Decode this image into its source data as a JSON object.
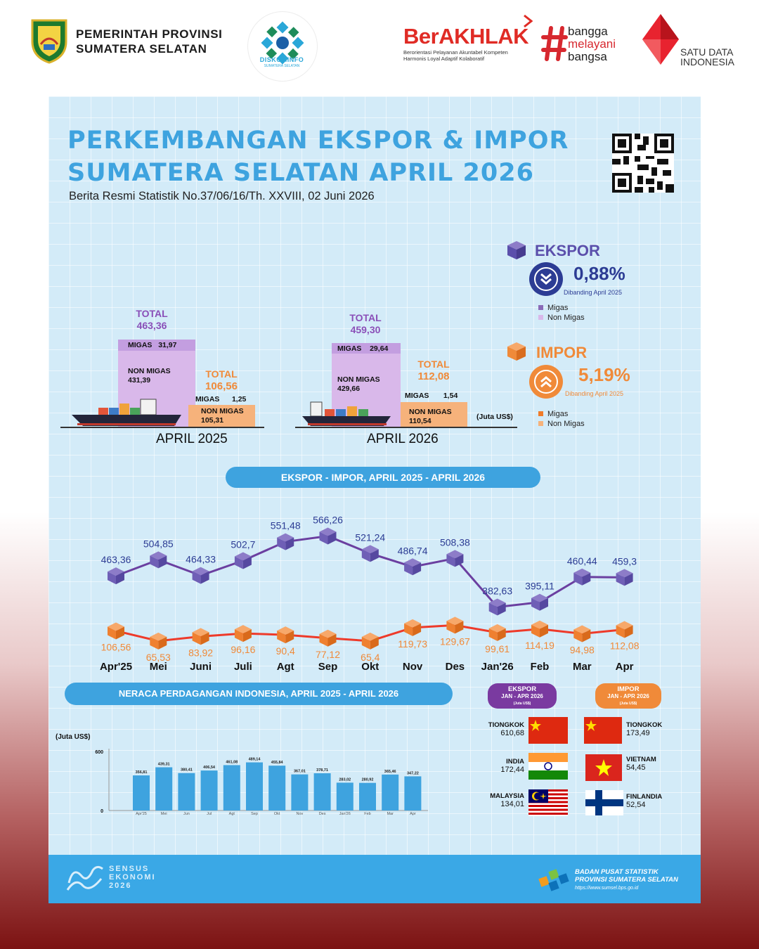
{
  "header": {
    "gov_line1": "PEMERINTAH PROVINSI",
    "gov_line2": "SUMATERA SELATAN",
    "diskominfo": "DISKOMINFO",
    "diskominfo_sub": "SUMATERA SELATAN",
    "berakhlak": "BerAKHLAK",
    "berakhlak_sub1": "Berorientasi Pelayanan Akuntabel Kompeten",
    "berakhlak_sub2": "Harmonis Loyal Adaptif Kolaboratif",
    "bangga": [
      "bangga",
      "melayani",
      "bangsa"
    ],
    "sdi_line1": "SATU DATA",
    "sdi_line2": "INDONESIA"
  },
  "title_line1": "PERKEMBANGAN EKSPOR & IMPOR",
  "title_line2": "SUMATERA SELATAN APRIL 2026",
  "subtitle": "Berita Resmi Statistik No.37/06/16/Th. XXVIII, 02 Juni 2026",
  "summary": {
    "ekspor_label": "EKSPOR",
    "ekspor_pct": "0,88%",
    "ekspor_cmp": "Dibanding April 2025",
    "impor_label": "IMPOR",
    "impor_pct": "5,19%",
    "impor_cmp": "Dibanding April 2025",
    "legend_migas": "Migas",
    "legend_nonmigas": "Non Migas",
    "colors": {
      "ekspor_migas": "#8a6bb8",
      "ekspor_nonmigas": "#d9b8ea",
      "impor_migas": "#f07c2a",
      "impor_nonmigas": "#f6b27b"
    }
  },
  "comparison": {
    "unit": "(Juta US$)",
    "total_word": "TOTAL",
    "migas_word": "MIGAS",
    "nonmigas_word": "NON MIGAS",
    "apr2025": {
      "label": "APRIL 2025",
      "ekspor_total": "463,36",
      "ekspor_migas": "31,97",
      "ekspor_nonmigas": "431,39",
      "impor_total": "106,56",
      "impor_migas": "1,25",
      "impor_nonmigas": "105,31"
    },
    "apr2026": {
      "label": "APRIL 2026",
      "ekspor_total": "459,30",
      "ekspor_migas": "29,64",
      "ekspor_nonmigas": "429,66",
      "impor_total": "112,08",
      "impor_migas": "1,54",
      "impor_nonmigas": "110,54"
    }
  },
  "trend_title": "EKSPOR - IMPOR, APRIL 2025 -  APRIL 2026",
  "neraca_title": "NERACA PERDAGANGAN INDONESIA, APRIL 2025 - APRIL 2026",
  "chart_data": [
    {
      "type": "line",
      "categories": [
        "Apr'25",
        "Mei",
        "Juni",
        "Juli",
        "Agt",
        "Sep",
        "Okt",
        "Nov",
        "Des",
        "Jan'26",
        "Feb",
        "Mar",
        "Apr"
      ],
      "series": [
        {
          "values": [
            463.36,
            504.85,
            464.33,
            502.7,
            551.48,
            566.26,
            521.24,
            486.74,
            508.38,
            382.63,
            395.11,
            460.44,
            459.3
          ],
          "labels": [
            "463,36",
            "504,85",
            "464,33",
            "502,7",
            "551,48",
            "566,26",
            "521,24",
            "486,74",
            "508,38",
            "382,63",
            "395,11",
            "460,44",
            "459,3"
          ],
          "color": "#6b3fa0"
        },
        {
          "values": [
            106.56,
            65.53,
            83.92,
            96.16,
            90.4,
            77.12,
            65.4,
            119.73,
            129.67,
            99.61,
            114.19,
            94.98,
            112.08
          ],
          "labels": [
            "106,56",
            "65,53",
            "83,92",
            "96,16",
            "90,4",
            "77,12",
            "65,4",
            "119,73",
            "129,67",
            "99,61",
            "114,19",
            "94,98",
            "112,08"
          ],
          "color": "#ee3a2a"
        }
      ]
    },
    {
      "type": "bar",
      "ylabel": "(Juta US$)",
      "ylim": [
        0,
        600
      ],
      "yticks": [
        "600",
        "0"
      ],
      "categories": [
        "Apr'25",
        "Mei",
        "Jun",
        "Jul",
        "Agt",
        "Sep",
        "Okt",
        "Nov",
        "Des",
        "Jan'26",
        "Feb",
        "Mar",
        "Apr"
      ],
      "values": [
        356.81,
        439.31,
        380.41,
        406.54,
        461.08,
        489.14,
        455.84,
        367.01,
        378.71,
        283.02,
        280.92,
        365.46,
        347.22
      ],
      "labels": [
        "356,81",
        "439,31",
        "380,41",
        "406,54",
        "461,08",
        "489,14",
        "455,84",
        "367,01",
        "378,71",
        "283,02",
        "280,92",
        "365,46",
        "347,22"
      ],
      "color": "#3ea3df"
    }
  ],
  "countries": {
    "ekspor_tag": "EKSPOR",
    "ekspor_tag_sub": "JAN - APR 2026",
    "ekspor_tag_unit": "(Juta US$)",
    "impor_tag": "IMPOR",
    "impor_tag_sub": "JAN - APR 2026",
    "impor_tag_unit": "(Juta US$)",
    "ekspor": [
      {
        "name": "TIONGKOK",
        "value": "610,68"
      },
      {
        "name": "INDIA",
        "value": "172,44"
      },
      {
        "name": "MALAYSIA",
        "value": "134,01"
      }
    ],
    "impor": [
      {
        "name": "TIONGKOK",
        "value": "173,49"
      },
      {
        "name": "VIETNAM",
        "value": "54,45"
      },
      {
        "name": "FINLANDIA",
        "value": "52,54"
      }
    ]
  },
  "footer": {
    "sensus": [
      "SENSUS",
      "EKONOMI",
      "2026"
    ],
    "bps_line1": "BADAN PUSAT STATISTIK",
    "bps_line2": "PROVINSI SUMATERA SELATAN",
    "bps_url": "https://www.sumsel.bps.go.id"
  }
}
